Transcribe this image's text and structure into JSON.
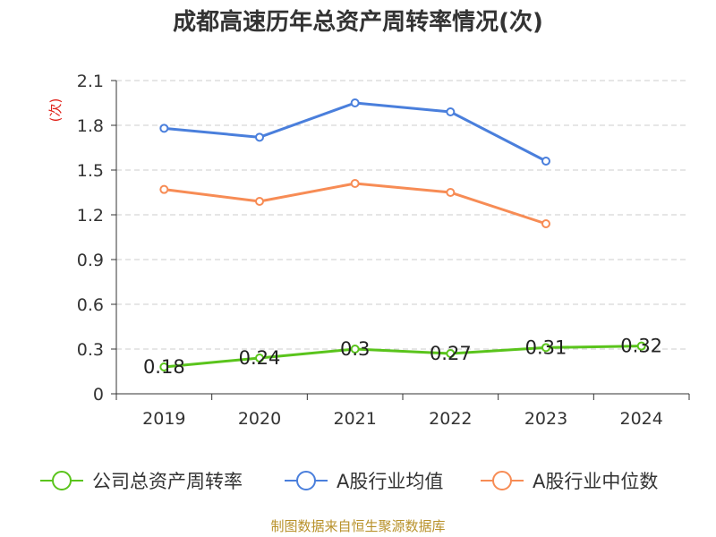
{
  "page": {
    "title": "成都高速历年总资产周转率情况(次)",
    "unit": "(次)",
    "source": "制图数据来自恒生聚源数据库"
  },
  "chart_data": {
    "type": "line",
    "title": "成都高速历年总资产周转率情况(次)",
    "ylabel": "(次)",
    "xlabel": "",
    "categories": [
      "2019",
      "2020",
      "2021",
      "2022",
      "2023",
      "2024"
    ],
    "ylim": [
      0,
      2.1
    ],
    "yticks": [
      "0",
      "0.3",
      "0.6",
      "0.9",
      "1.2",
      "1.5",
      "1.8",
      "2.1"
    ],
    "grid": true,
    "legend": "bottom",
    "series": [
      {
        "name": "公司总资产周转率",
        "color": "#5ac41c",
        "values": [
          0.18,
          0.24,
          0.3,
          0.27,
          0.31,
          0.32
        ],
        "labels": [
          "0.18",
          "0.24",
          "0.3",
          "0.27",
          "0.31",
          "0.32"
        ],
        "show_labels": true
      },
      {
        "name": "A股行业均值",
        "color": "#4a7fdc",
        "values": [
          1.78,
          1.72,
          1.95,
          1.89,
          1.56,
          null
        ],
        "show_labels": false
      },
      {
        "name": "A股行业中位数",
        "color": "#f78c55",
        "values": [
          1.37,
          1.29,
          1.41,
          1.35,
          1.14,
          null
        ],
        "show_labels": false
      }
    ]
  }
}
